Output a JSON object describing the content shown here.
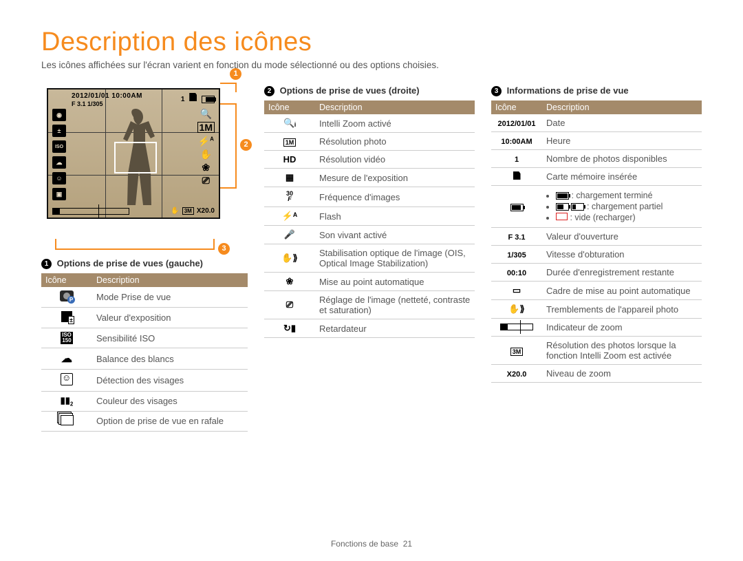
{
  "page": {
    "title": "Description des icônes",
    "intro": "Les icônes affichées sur l'écran varient en fonction du mode sélectionné ou des options choisies.",
    "footer_label": "Fonctions de base",
    "page_number": "21"
  },
  "diagram": {
    "date_text": "2012/01/01 10:00AM",
    "exposure_text": "F 3.1 1/305",
    "top_right_count": "1",
    "zoom_res_label": "3M",
    "zoom_text": "X20.0"
  },
  "callouts": {
    "n1": "1",
    "n2": "2",
    "n3": "3"
  },
  "table_headers": {
    "icon": "Icône",
    "desc": "Description"
  },
  "section1": {
    "title": "Options de prise de vues (gauche)",
    "rows": [
      {
        "icon": "camera-mode",
        "desc": "Mode Prise de vue"
      },
      {
        "icon": "ev",
        "desc": "Valeur d'exposition"
      },
      {
        "icon": "iso",
        "desc": "Sensibilité ISO"
      },
      {
        "icon": "wb",
        "desc": "Balance des blancs"
      },
      {
        "icon": "face",
        "desc": "Détection des visages"
      },
      {
        "icon": "face-color",
        "desc": "Couleur des visages"
      },
      {
        "icon": "burst",
        "desc": "Option de prise de vue en rafale"
      }
    ]
  },
  "section2": {
    "title": "Options de prise de vues (droite)",
    "rows": [
      {
        "icon": "intellizoom",
        "glyph": "🔍ᵢ",
        "desc": "Intelli Zoom activé"
      },
      {
        "icon": "photo-res",
        "glyph": "1M",
        "box": true,
        "desc": "Résolution photo"
      },
      {
        "icon": "video-res",
        "glyph": "HD",
        "desc": "Résolution vidéo"
      },
      {
        "icon": "metering",
        "glyph": "▦",
        "desc": "Mesure de l'exposition"
      },
      {
        "icon": "framerate",
        "glyph": "30 F",
        "stacked": true,
        "desc": "Fréquence d'images"
      },
      {
        "icon": "flash",
        "glyph": "⚡ᴬ",
        "desc": "Flash"
      },
      {
        "icon": "sound",
        "glyph": "🎤",
        "desc": "Son vivant activé"
      },
      {
        "icon": "ois",
        "glyph": "✋⟫",
        "desc": "Stabilisation optique de l'image (OIS, Optical Image Stabilization)"
      },
      {
        "icon": "macro",
        "glyph": "❀",
        "desc": "Mise au point automatique"
      },
      {
        "icon": "sliders",
        "glyph": "⎚",
        "desc": "Réglage de l'image (netteté, contraste et saturation)"
      },
      {
        "icon": "timer",
        "glyph": "↻▮",
        "desc": "Retardateur"
      }
    ]
  },
  "section3": {
    "title": "Informations de prise de vue",
    "rows": [
      {
        "icon": "date",
        "label": "2012/01/01",
        "desc": "Date"
      },
      {
        "icon": "time",
        "label": "10:00AM",
        "desc": "Heure"
      },
      {
        "icon": "count",
        "label": "1",
        "desc": "Nombre de photos disponibles"
      },
      {
        "icon": "card",
        "glyph": "card",
        "desc": "Carte mémoire insérée"
      },
      {
        "icon": "battery",
        "glyph": "battery",
        "is_battery": true,
        "bullets": [
          {
            "kind": "full",
            "text": ": chargement terminé"
          },
          {
            "kind": "partial",
            "text": ": chargement partiel"
          },
          {
            "kind": "empty",
            "text": ": vide (recharger)"
          }
        ]
      },
      {
        "icon": "aperture",
        "label": "F 3.1",
        "desc": "Valeur d'ouverture"
      },
      {
        "icon": "shutter",
        "label": "1/305",
        "desc": "Vitesse d'obturation"
      },
      {
        "icon": "rec-time",
        "label": "00:10",
        "desc": "Durée d'enregistrement restante"
      },
      {
        "icon": "af-frame",
        "glyph": "▭",
        "desc": "Cadre de mise au point automatique"
      },
      {
        "icon": "shake",
        "glyph": "✋⟫",
        "desc": "Tremblements de l'appareil photo"
      },
      {
        "icon": "zoom-ind",
        "glyph": "zoombar",
        "desc": "Indicateur de zoom"
      },
      {
        "icon": "iz-res",
        "glyph": "3M",
        "box": true,
        "desc": "Résolution des photos lorsque la fonction Intelli Zoom est activée"
      },
      {
        "icon": "zoom-lvl",
        "label": "X20.0",
        "desc": "Niveau de zoom"
      }
    ]
  },
  "colors": {
    "accent": "#f68b1e",
    "table_header_bg": "#a48a6a",
    "screen_bg_top": "#c8b89a",
    "screen_bg_bottom": "#b5a27e"
  }
}
